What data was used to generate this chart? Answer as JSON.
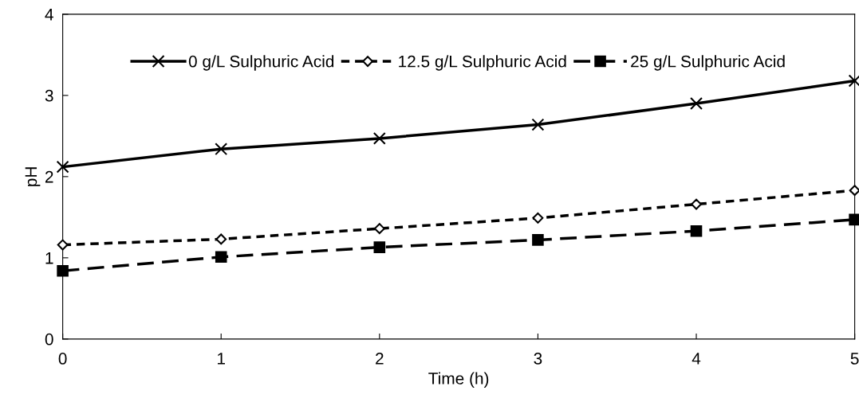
{
  "chart_data": {
    "type": "line",
    "xlabel": "Time (h)",
    "ylabel": "pH",
    "x": [
      0,
      1,
      2,
      3,
      4,
      5
    ],
    "series": [
      {
        "name": "0 g/L Sulphuric Acid",
        "color": "#000000",
        "marker": "cross",
        "line_style": "solid",
        "values": [
          2.12,
          2.34,
          2.47,
          2.64,
          2.9,
          3.18
        ]
      },
      {
        "name": "12.5 g/L Sulphuric Acid",
        "color": "#000000",
        "marker": "diamond",
        "line_style": "dotted",
        "values": [
          1.16,
          1.23,
          1.36,
          1.49,
          1.66,
          1.83
        ]
      },
      {
        "name": "25 g/L Sulphuric Acid",
        "color": "#000000",
        "marker": "square",
        "line_style": "dashed",
        "values": [
          0.84,
          1.01,
          1.13,
          1.22,
          1.33,
          1.47
        ]
      }
    ],
    "xlim": [
      0,
      5
    ],
    "xticks": [
      0,
      1,
      2,
      3,
      4,
      5
    ],
    "ylim": [
      0,
      4
    ],
    "yticks": [
      0,
      1,
      2,
      3,
      4
    ],
    "grid": false,
    "legend": "top"
  }
}
